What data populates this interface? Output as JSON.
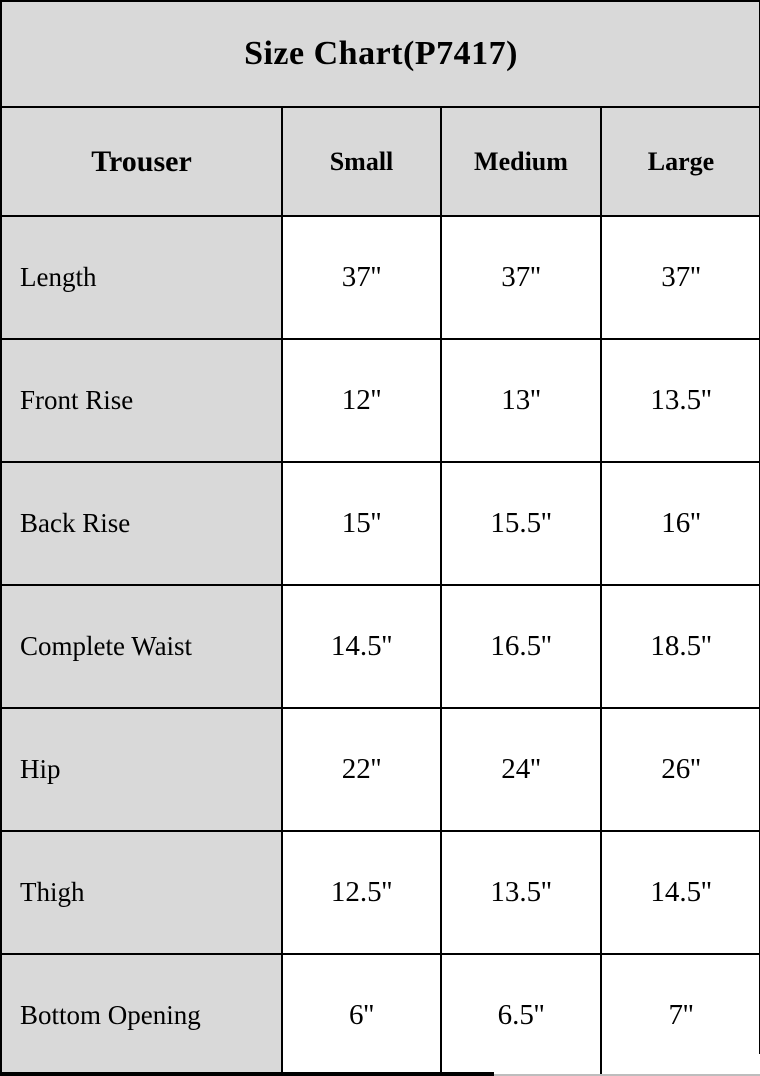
{
  "chart_data": {
    "type": "table",
    "title": "Size Chart(P7417)",
    "corner_header": "Trouser",
    "size_columns": [
      "Small",
      "Medium",
      "Large"
    ],
    "rows": [
      {
        "label": "Length",
        "values": [
          "37''",
          "37''",
          "37''"
        ]
      },
      {
        "label": "Front Rise",
        "values": [
          "12''",
          "13''",
          "13.5''"
        ]
      },
      {
        "label": "Back Rise",
        "values": [
          "15''",
          "15.5''",
          "16''"
        ]
      },
      {
        "label": "Complete Waist",
        "values": [
          "14.5''",
          "16.5''",
          "18.5''"
        ]
      },
      {
        "label": "Hip",
        "values": [
          "22''",
          "24''",
          "26''"
        ]
      },
      {
        "label": "Thigh",
        "values": [
          "12.5''",
          "13.5''",
          "14.5''"
        ]
      },
      {
        "label": "Bottom Opening",
        "values": [
          "6''",
          "6.5''",
          "7''"
        ]
      }
    ],
    "layout": {
      "grid": "on",
      "header_bg": "#d9d9d9",
      "row_label_bg": "#d9d9d9",
      "value_bg": "#ffffff",
      "border_color": "#000000",
      "text_color": "#000000"
    }
  }
}
